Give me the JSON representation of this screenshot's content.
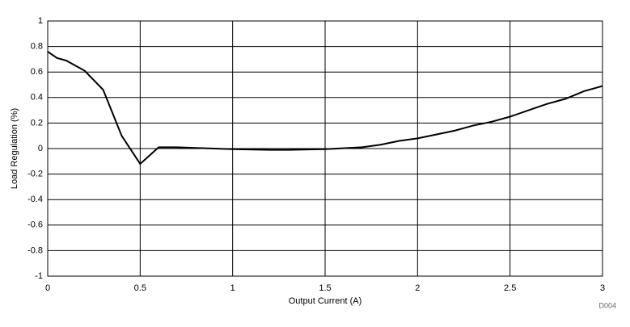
{
  "chart_data": {
    "type": "line",
    "x_label": "Output Current (A)",
    "y_label": "Load Regulation (%)",
    "annotation": "D004",
    "x": [
      0,
      0.05,
      0.1,
      0.2,
      0.3,
      0.4,
      0.5,
      0.6,
      0.7,
      0.8,
      0.9,
      1.0,
      1.2,
      1.3,
      1.5,
      1.7,
      1.8,
      1.9,
      2.0,
      2.1,
      2.2,
      2.3,
      2.4,
      2.5,
      2.6,
      2.7,
      2.8,
      2.9,
      3.0
    ],
    "series": [
      {
        "name": "Load Regulation",
        "color": "#000000",
        "values": [
          0.76,
          0.71,
          0.69,
          0.61,
          0.46,
          0.1,
          -0.12,
          0.01,
          0.01,
          0.005,
          0,
          -0.005,
          -0.01,
          -0.01,
          -0.005,
          0.01,
          0.03,
          0.06,
          0.08,
          0.11,
          0.14,
          0.18,
          0.21,
          0.25,
          0.3,
          0.35,
          0.39,
          0.45,
          0.49
        ]
      }
    ],
    "xlim": [
      0,
      3
    ],
    "xticks": [
      0,
      0.5,
      1,
      1.5,
      2,
      2.5,
      3
    ],
    "ylim": [
      -1,
      1
    ],
    "yticks": [
      -1,
      -0.8,
      -0.6,
      -0.4,
      -0.2,
      0,
      0.2,
      0.4,
      0.6,
      0.8,
      1
    ],
    "grid": true
  }
}
